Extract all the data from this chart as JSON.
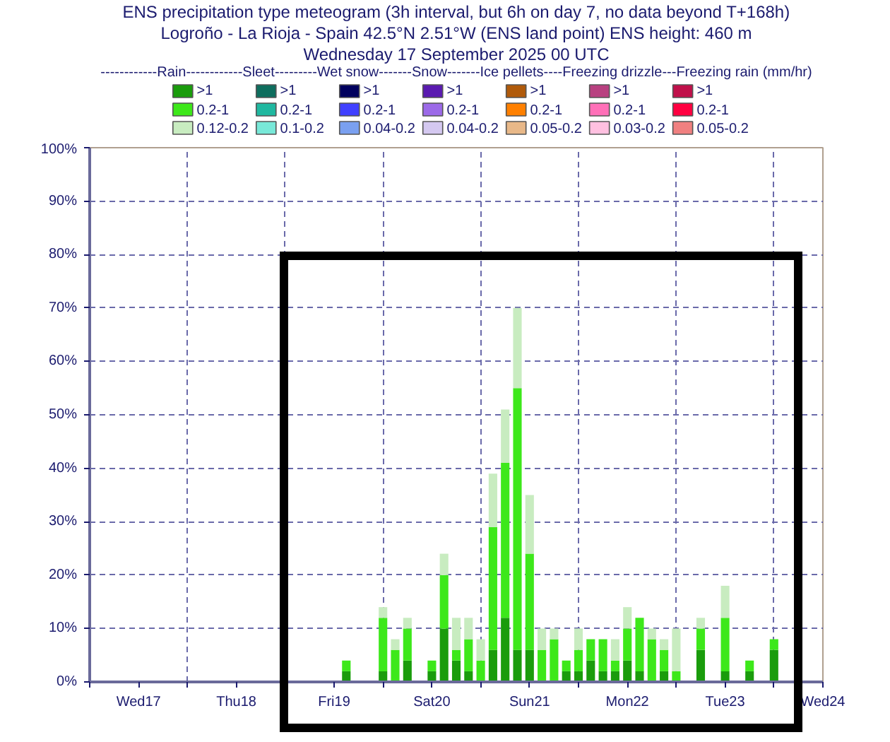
{
  "chart_data": {
    "type": "bar",
    "stacked": true,
    "title": "ENS precipitation type meteogram (3h interval, but 6h on day 7, no data beyond T+168h)",
    "subtitle": "Logroño - La Rioja - Spain 42.5°N 2.51°W (ENS land point) ENS height: 460 m\nWednesday 17 September 2025 00 UTC",
    "legend_title": "------------Rain------------Sleet---------Wet snow-------Snow-------Ice pellets----Freezing drizzle---Freezing rain (mm/hr)",
    "x": [
      "2025-09-19T15:00",
      "2025-09-20T00:00",
      "2025-09-20T03:00",
      "2025-09-20T06:00",
      "2025-09-20T12:00",
      "2025-09-20T15:00",
      "2025-09-20T18:00",
      "2025-09-20T21:00",
      "2025-09-21T00:00",
      "2025-09-21T03:00",
      "2025-09-21T06:00",
      "2025-09-21T09:00",
      "2025-09-21T12:00",
      "2025-09-21T15:00",
      "2025-09-21T18:00",
      "2025-09-21T21:00",
      "2025-09-22T00:00",
      "2025-09-22T03:00",
      "2025-09-22T06:00",
      "2025-09-22T09:00",
      "2025-09-22T12:00",
      "2025-09-22T15:00",
      "2025-09-22T18:00",
      "2025-09-22T21:00",
      "2025-09-23T00:00",
      "2025-09-23T06:00",
      "2025-09-23T12:00",
      "2025-09-23T18:00",
      "2025-09-24T00:00"
    ],
    "series": [
      {
        "name": ">1",
        "color": "#1a9c0c",
        "values": [
          2,
          2,
          0,
          4,
          2,
          10,
          4,
          2,
          0,
          6,
          12,
          6,
          6,
          0,
          0,
          2,
          2,
          4,
          2,
          2,
          4,
          2,
          0,
          2,
          0,
          6,
          2,
          2,
          6
        ]
      },
      {
        "name": "0.2-1",
        "color": "#3de81a",
        "values": [
          2,
          10,
          6,
          6,
          2,
          10,
          2,
          6,
          4,
          23,
          29,
          49,
          18,
          6,
          8,
          2,
          4,
          4,
          6,
          2,
          6,
          10,
          8,
          4,
          2,
          4,
          10,
          2,
          2
        ]
      },
      {
        "name": "0.12-0.2",
        "color": "#c8ecc0",
        "values": [
          0,
          2,
          2,
          2,
          0,
          4,
          6,
          4,
          4,
          10,
          10,
          15,
          11,
          4,
          2,
          0,
          4,
          0,
          0,
          4,
          4,
          0,
          2,
          2,
          8,
          2,
          6,
          0,
          0
        ]
      },
      {
        "name": ">1",
        "color": "#0e6e5e",
        "values": [
          null,
          null,
          null,
          null,
          null,
          null,
          null,
          null,
          null,
          null,
          null,
          null,
          null,
          null,
          null,
          null,
          null,
          null,
          null,
          null,
          null,
          null,
          null,
          null,
          null,
          null,
          null,
          null,
          null
        ]
      },
      {
        "name": "0.2-1",
        "color": "#20b8a0",
        "values": [
          null,
          null,
          null,
          null,
          null,
          null,
          null,
          null,
          null,
          null,
          null,
          null,
          null,
          null,
          null,
          null,
          null,
          null,
          null,
          null,
          null,
          null,
          null,
          null,
          null,
          null,
          null,
          null,
          null
        ]
      },
      {
        "name": "0.1-0.2",
        "color": "#78e8d8",
        "values": [
          null,
          null,
          null,
          null,
          null,
          null,
          null,
          null,
          null,
          null,
          null,
          null,
          null,
          null,
          null,
          null,
          null,
          null,
          null,
          null,
          null,
          null,
          null,
          null,
          null,
          null,
          null,
          null,
          null
        ]
      },
      {
        "name": ">1",
        "color": "#00005e",
        "values": [
          null,
          null,
          null,
          null,
          null,
          null,
          null,
          null,
          null,
          null,
          null,
          null,
          null,
          null,
          null,
          null,
          null,
          null,
          null,
          null,
          null,
          null,
          null,
          null,
          null,
          null,
          null,
          null,
          null
        ]
      },
      {
        "name": "0.2-1",
        "color": "#4040ff",
        "values": [
          null,
          null,
          null,
          null,
          null,
          null,
          null,
          null,
          null,
          null,
          null,
          null,
          null,
          null,
          null,
          null,
          null,
          null,
          null,
          null,
          null,
          null,
          null,
          null,
          null,
          null,
          null,
          null,
          null
        ]
      },
      {
        "name": "0.04-0.2",
        "color": "#7aa0f0",
        "values": [
          null,
          null,
          null,
          null,
          null,
          null,
          null,
          null,
          null,
          null,
          null,
          null,
          null,
          null,
          null,
          null,
          null,
          null,
          null,
          null,
          null,
          null,
          null,
          null,
          null,
          null,
          null,
          null,
          null
        ]
      },
      {
        "name": ">1",
        "color": "#5a1ab0",
        "values": [
          null,
          null,
          null,
          null,
          null,
          null,
          null,
          null,
          null,
          null,
          null,
          null,
          null,
          null,
          null,
          null,
          null,
          null,
          null,
          null,
          null,
          null,
          null,
          null,
          null,
          null,
          null,
          null,
          null
        ]
      },
      {
        "name": "0.2-1",
        "color": "#9c6ae8",
        "values": [
          null,
          null,
          null,
          null,
          null,
          null,
          null,
          null,
          null,
          null,
          null,
          null,
          null,
          null,
          null,
          null,
          null,
          null,
          null,
          null,
          null,
          null,
          null,
          null,
          null,
          null,
          null,
          null,
          null
        ]
      },
      {
        "name": "0.04-0.2",
        "color": "#d4c8f0",
        "values": [
          null,
          null,
          null,
          null,
          null,
          null,
          null,
          null,
          null,
          null,
          null,
          null,
          null,
          null,
          null,
          null,
          null,
          null,
          null,
          null,
          null,
          null,
          null,
          null,
          null,
          null,
          null,
          null,
          null
        ]
      },
      {
        "name": ">1",
        "color": "#b05a0a",
        "values": [
          null,
          null,
          null,
          null,
          null,
          null,
          null,
          null,
          null,
          null,
          null,
          null,
          null,
          null,
          null,
          null,
          null,
          null,
          null,
          null,
          null,
          null,
          null,
          null,
          null,
          null,
          null,
          null,
          null
        ]
      },
      {
        "name": "0.2-1",
        "color": "#ff8000",
        "values": [
          null,
          null,
          null,
          null,
          null,
          null,
          null,
          null,
          null,
          null,
          null,
          null,
          null,
          null,
          null,
          null,
          null,
          null,
          null,
          null,
          null,
          null,
          null,
          null,
          null,
          null,
          null,
          null,
          null
        ]
      },
      {
        "name": "0.05-0.2",
        "color": "#e8b888",
        "values": [
          null,
          null,
          null,
          null,
          null,
          null,
          null,
          null,
          null,
          null,
          null,
          null,
          null,
          null,
          null,
          null,
          null,
          null,
          null,
          null,
          null,
          null,
          null,
          null,
          null,
          null,
          null,
          null,
          null
        ]
      },
      {
        "name": ">1",
        "color": "#b84080",
        "values": [
          null,
          null,
          null,
          null,
          null,
          null,
          null,
          null,
          null,
          null,
          null,
          null,
          null,
          null,
          null,
          null,
          null,
          null,
          null,
          null,
          null,
          null,
          null,
          null,
          null,
          null,
          null,
          null,
          null
        ]
      },
      {
        "name": "0.2-1",
        "color": "#ff70b8",
        "values": [
          null,
          null,
          null,
          null,
          null,
          null,
          null,
          null,
          null,
          null,
          null,
          null,
          null,
          null,
          null,
          null,
          null,
          null,
          null,
          null,
          null,
          null,
          null,
          null,
          null,
          null,
          null,
          null,
          null
        ]
      },
      {
        "name": "0.03-0.2",
        "color": "#ffc0e0",
        "values": [
          null,
          null,
          null,
          null,
          null,
          null,
          null,
          null,
          null,
          null,
          null,
          null,
          null,
          null,
          null,
          null,
          null,
          null,
          null,
          null,
          null,
          null,
          null,
          null,
          null,
          null,
          null,
          null,
          null
        ]
      },
      {
        "name": ">1",
        "color": "#c0104a",
        "values": [
          null,
          null,
          null,
          null,
          null,
          null,
          null,
          null,
          null,
          null,
          null,
          null,
          null,
          null,
          null,
          null,
          null,
          null,
          null,
          null,
          null,
          null,
          null,
          null,
          null,
          null,
          null,
          null,
          null
        ]
      },
      {
        "name": "0.2-1",
        "color": "#ff0040",
        "values": [
          null,
          null,
          null,
          null,
          null,
          null,
          null,
          null,
          null,
          null,
          null,
          null,
          null,
          null,
          null,
          null,
          null,
          null,
          null,
          null,
          null,
          null,
          null,
          null,
          null,
          null,
          null,
          null,
          null
        ]
      },
      {
        "name": "0.05-0.2",
        "color": "#f08080",
        "values": [
          null,
          null,
          null,
          null,
          null,
          null,
          null,
          null,
          null,
          null,
          null,
          null,
          null,
          null,
          null,
          null,
          null,
          null,
          null,
          null,
          null,
          null,
          null,
          null,
          null,
          null,
          null,
          null,
          null
        ]
      }
    ],
    "xlim": [
      "2025-09-17T00:00",
      "2025-09-24T12:00"
    ],
    "xticks": [
      {
        "value": "2025-09-17T00:00",
        "label": null
      },
      {
        "value": "2025-09-17T12:00",
        "label": "Wed17"
      },
      {
        "value": "2025-09-18T00:00",
        "label": null
      },
      {
        "value": "2025-09-18T12:00",
        "label": "Thu18"
      },
      {
        "value": "2025-09-19T00:00",
        "label": null
      },
      {
        "value": "2025-09-19T12:00",
        "label": "Fri19"
      },
      {
        "value": "2025-09-20T00:00",
        "label": null
      },
      {
        "value": "2025-09-20T12:00",
        "label": "Sat20"
      },
      {
        "value": "2025-09-21T00:00",
        "label": null
      },
      {
        "value": "2025-09-21T12:00",
        "label": "Sun21"
      },
      {
        "value": "2025-09-22T00:00",
        "label": null
      },
      {
        "value": "2025-09-22T12:00",
        "label": "Mon22"
      },
      {
        "value": "2025-09-23T00:00",
        "label": null
      },
      {
        "value": "2025-09-23T12:00",
        "label": "Tue23"
      },
      {
        "value": "2025-09-24T00:00",
        "label": null
      },
      {
        "value": "2025-09-24T12:00",
        "label": "Wed24"
      }
    ],
    "ylim": [
      0,
      100
    ],
    "yticks": [
      {
        "value": 0,
        "label": "0%"
      },
      {
        "value": 10,
        "label": "10%"
      },
      {
        "value": 20,
        "label": "20%"
      },
      {
        "value": 30,
        "label": "30%"
      },
      {
        "value": 40,
        "label": "40%"
      },
      {
        "value": 50,
        "label": "50%"
      },
      {
        "value": 60,
        "label": "60%"
      },
      {
        "value": 70,
        "label": "70%"
      },
      {
        "value": 80,
        "label": "80%"
      },
      {
        "value": 90,
        "label": "90%"
      },
      {
        "value": 100,
        "label": "100%"
      }
    ],
    "grid": true,
    "legend": "top"
  }
}
